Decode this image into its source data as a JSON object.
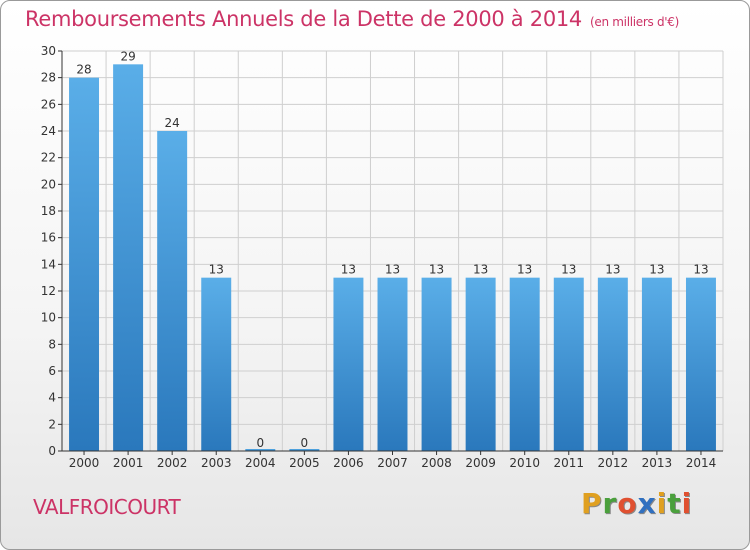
{
  "header": {
    "title": "Remboursements Annuels de la Dette de 2000 à 2014",
    "unit": "(en milliers d'€)"
  },
  "footer": {
    "commune": "VALFROICOURT",
    "logo": "Proxiti",
    "logo_colors": [
      "#e0a020",
      "#4aa03c",
      "#e05030",
      "#3070c0",
      "#e0a020",
      "#4aa03c",
      "#e05030"
    ]
  },
  "colors": {
    "accent": "#cc3366",
    "bar_top": "#5aaee8",
    "bar_bottom": "#2a78bc",
    "grid": "#cfcfcf",
    "axis": "#333333"
  },
  "chart_data": {
    "type": "bar",
    "title": "Remboursements Annuels de la Dette de 2000 à 2014",
    "subtitle": "(en milliers d'€)",
    "xlabel": "",
    "ylabel": "",
    "categories": [
      "2000",
      "2001",
      "2002",
      "2003",
      "2004",
      "2005",
      "2006",
      "2007",
      "2008",
      "2009",
      "2010",
      "2011",
      "2012",
      "2013",
      "2014"
    ],
    "values": [
      28,
      29,
      24,
      13,
      0,
      0,
      13,
      13,
      13,
      13,
      13,
      13,
      13,
      13,
      13
    ],
    "labels": [
      "28",
      "29",
      "24",
      "13",
      "0",
      "0",
      "13",
      "13",
      "13",
      "13",
      "13",
      "13",
      "13",
      "13",
      "13"
    ],
    "ylim": [
      0,
      30
    ],
    "yticks": [
      0,
      2,
      4,
      6,
      8,
      10,
      12,
      14,
      16,
      18,
      20,
      22,
      24,
      26,
      28,
      30
    ],
    "grid": true,
    "legend": "none"
  }
}
